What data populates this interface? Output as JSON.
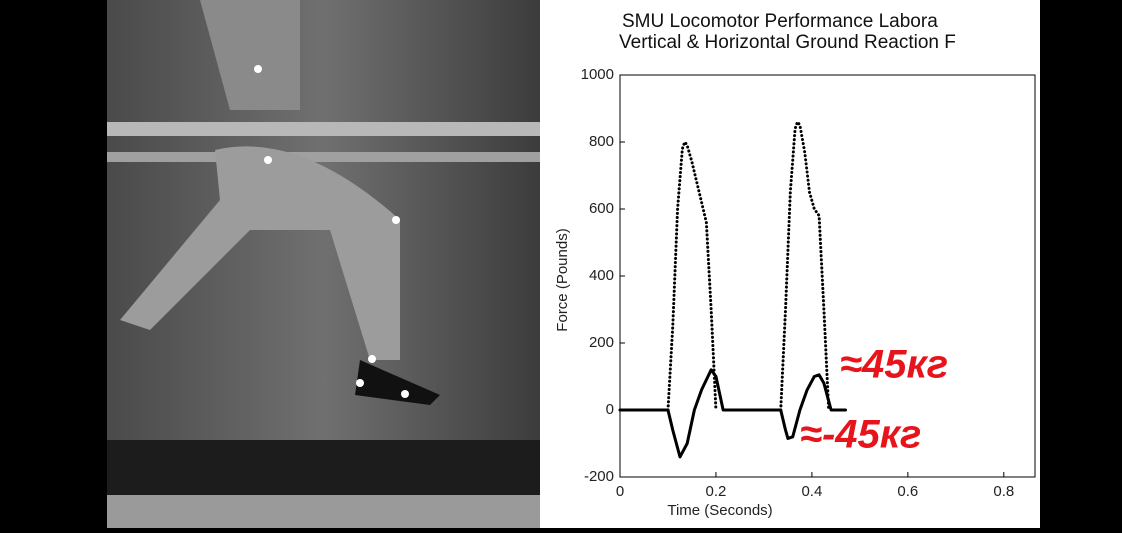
{
  "chart_data": {
    "type": "line",
    "title": [
      "SMU Locomotor Performance Labora",
      "Vertical & Horizontal Ground Reaction F"
    ],
    "x_label": "Time (Seconds)",
    "y_label": "Force (Pounds)",
    "xlim": [
      0,
      0.865
    ],
    "xticks": [
      0,
      0.2,
      0.4,
      0.6,
      0.8
    ],
    "ylim": [
      -200,
      1000
    ],
    "yticks": [
      -200,
      0,
      200,
      400,
      600,
      800,
      1000
    ],
    "series": [
      {
        "color": "#000000",
        "style": "dotted",
        "x": [
          0.1,
          0.11,
          0.12,
          0.13,
          0.135,
          0.14,
          0.15,
          0.16,
          0.17,
          0.18,
          0.19,
          0.2,
          0.27,
          0.335,
          0.345,
          0.355,
          0.365,
          0.37,
          0.375,
          0.385,
          0.395,
          0.405,
          0.415,
          0.425,
          0.435
        ],
        "values": [
          0,
          250,
          600,
          780,
          800,
          790,
          740,
          680,
          620,
          560,
          300,
          0,
          null,
          0,
          300,
          650,
          840,
          860,
          850,
          770,
          650,
          600,
          580,
          300,
          0
        ]
      },
      {
        "color": "#000000",
        "style": "solid",
        "x": [
          0,
          0.1,
          0.11,
          0.125,
          0.14,
          0.155,
          0.17,
          0.19,
          0.2,
          0.215,
          0.335,
          0.345,
          0.35,
          0.36,
          0.375,
          0.39,
          0.405,
          0.415,
          0.425,
          0.44,
          0.47
        ],
        "values": [
          0,
          0,
          -60,
          -140,
          -100,
          0,
          60,
          120,
          100,
          0,
          0,
          -60,
          -85,
          -80,
          0,
          60,
          100,
          105,
          80,
          0,
          0
        ]
      }
    ],
    "annotations": [
      "≈45кг",
      "≈-45кг"
    ],
    "annotation_color": "#e8141b"
  }
}
